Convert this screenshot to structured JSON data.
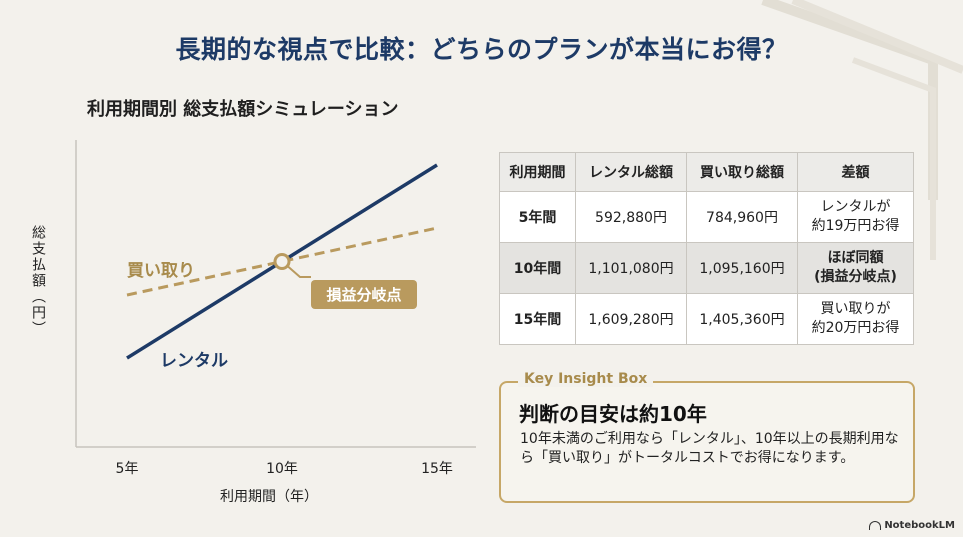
{
  "page": {
    "title": "長期的な視点で比較：どちらのプランが本当にお得？",
    "brand": "NotebookLM"
  },
  "chart_data": {
    "type": "line",
    "title": "利用期間別 総支払額シミュレーション",
    "xlabel": "利用期間（年）",
    "ylabel": "総支払額（円）",
    "x": [
      5,
      10,
      15
    ],
    "x_tick_labels": [
      "5年",
      "10年",
      "15年"
    ],
    "series": [
      {
        "name": "レンタル",
        "values": [
          592880,
          1101080,
          1609280
        ],
        "color": "#1d3a66",
        "style": "solid"
      },
      {
        "name": "買い取り",
        "values": [
          784960,
          1095160,
          1405360
        ],
        "color": "#b99a5e",
        "style": "dashed"
      }
    ],
    "annotation": "損益分岐点",
    "grid": false
  },
  "table": {
    "headers": [
      "利用期間",
      "レンタル総額",
      "買い取り総額",
      "差額"
    ],
    "rows": [
      {
        "period": "5年間",
        "rental": "592,880円",
        "purchase": "784,960円",
        "diff_line1": "レンタルが",
        "diff_line2": "約19万円お得"
      },
      {
        "period": "10年間",
        "rental": "1,101,080円",
        "purchase": "1,095,160円",
        "diff_line1": "ほぼ同額",
        "diff_line2": "(損益分岐点)"
      },
      {
        "period": "15年間",
        "rental": "1,609,280円",
        "purchase": "1,405,360円",
        "diff_line1": "買い取りが",
        "diff_line2": "約20万円お得"
      }
    ]
  },
  "insight": {
    "heading": "Key Insight Box",
    "title": "判断の目安は約10年",
    "body": "10年未満のご利用なら「レンタル」、10年以上の長期利用なら「買い取り」がトータルコストでお得になります。"
  },
  "colors": {
    "navy": "#1d3a66",
    "gold": "#b99a5e",
    "background": "#f3f1ec"
  }
}
